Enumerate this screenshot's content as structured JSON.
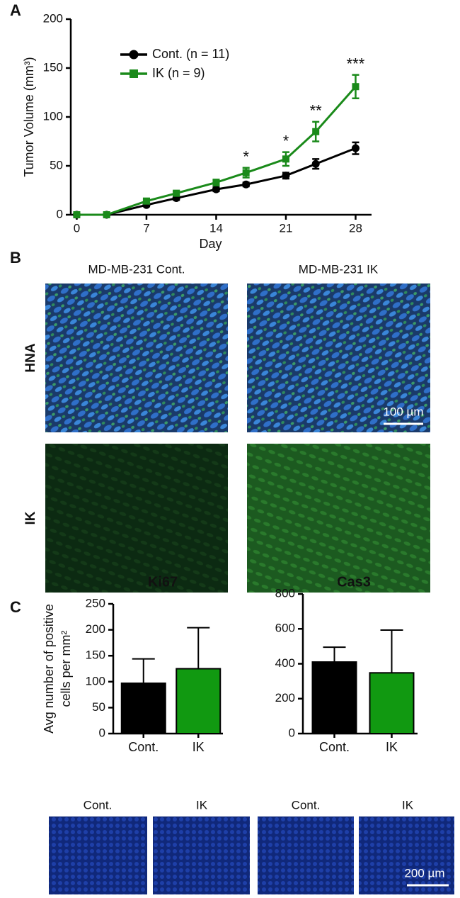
{
  "chart_data": [
    {
      "type": "line",
      "xlabel": "Day",
      "ylabel": "Tumor Volume (mm³)",
      "x": [
        0,
        3,
        7,
        10,
        14,
        17,
        21,
        24,
        28
      ],
      "xlim": [
        -0.6,
        29.6
      ],
      "xticks": [
        0,
        7,
        14,
        21,
        28
      ],
      "ylim": [
        0,
        200
      ],
      "yticks": [
        0,
        50,
        100,
        150,
        200
      ],
      "legend": "upper left",
      "series": [
        {
          "name": "Cont. (n = 11)",
          "color": "#000000",
          "marker": "circle",
          "values": [
            0,
            0,
            10,
            17,
            26,
            31,
            40,
            52,
            68
          ],
          "errors": [
            1,
            1,
            1.5,
            2,
            2,
            2,
            3,
            5,
            6
          ]
        },
        {
          "name": "IK (n = 9)",
          "color": "#1a8a1a",
          "marker": "square",
          "values": [
            0,
            0,
            14,
            22,
            33,
            43,
            57,
            85,
            131
          ],
          "errors": [
            1,
            1,
            2,
            2,
            3,
            5,
            7,
            10,
            12
          ]
        }
      ],
      "annotations": [
        {
          "text": "*",
          "x": 17
        },
        {
          "text": "*",
          "x": 21
        },
        {
          "text": "**",
          "x": 24
        },
        {
          "text": "***",
          "x": 28
        }
      ]
    },
    {
      "type": "bar",
      "title": "Ki67",
      "ylabel": [
        "Avg number of positive",
        "cells per mm²"
      ],
      "categories": [
        "Cont.",
        "IK"
      ],
      "values": [
        97,
        125
      ],
      "errors": [
        47,
        79
      ],
      "colors": [
        "#000000",
        "#119911"
      ],
      "ylim": [
        0,
        250
      ],
      "yticks": [
        0,
        50,
        100,
        150,
        200,
        250
      ]
    },
    {
      "type": "bar",
      "title": "Cas3",
      "categories": [
        "Cont.",
        "IK"
      ],
      "values": [
        410,
        348
      ],
      "errors": [
        85,
        245
      ],
      "colors": [
        "#000000",
        "#119911"
      ],
      "ylim": [
        0,
        800
      ],
      "yticks": [
        0,
        200,
        400,
        600,
        800
      ]
    }
  ],
  "panel_labels": [
    "A",
    "B",
    "C"
  ],
  "images": {
    "col_titles": [
      "MD-MB-231 Cont.",
      "MD-MB-231 IK"
    ],
    "row_labels": [
      "HNA",
      "IK"
    ],
    "scale_bar": "100 µm"
  },
  "bottom_images": {
    "labels": [
      "Cont.",
      "IK",
      "Cont.",
      "IK"
    ],
    "scale_bar": "200 µm"
  }
}
